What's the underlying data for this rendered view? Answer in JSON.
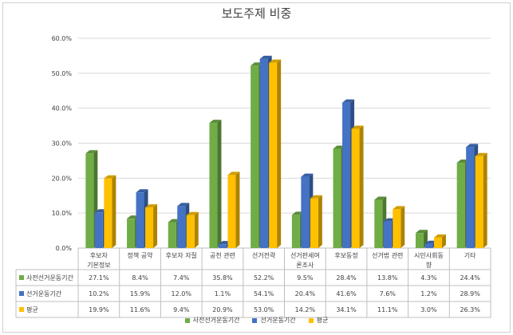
{
  "chart_data": {
    "type": "bar",
    "title": "보도주제 비중",
    "categories": [
      [
        "후보자",
        "기본정보"
      ],
      [
        "정책 공약"
      ],
      [
        "후보자 자질"
      ],
      [
        "공천 관련"
      ],
      [
        "선거전략"
      ],
      [
        "선거판세여",
        "론조사"
      ],
      [
        "후보동정"
      ],
      [
        "선거법 관련"
      ],
      [
        "시민사회동",
        "향"
      ],
      [
        "기타"
      ]
    ],
    "series": [
      {
        "name": "사전선거운동기간",
        "color": "#70ad47",
        "values": [
          27.1,
          8.4,
          7.4,
          35.8,
          52.2,
          9.5,
          28.4,
          13.8,
          4.3,
          24.4
        ],
        "labels": [
          "27.1%",
          "8.4%",
          "7.4%",
          "35.8%",
          "52.2%",
          "9.5%",
          "28.4%",
          "13.8%",
          "4.3%",
          "24.4%"
        ]
      },
      {
        "name": "선거운동기간",
        "color": "#4472c4",
        "values": [
          10.2,
          15.9,
          12.0,
          1.1,
          54.1,
          20.4,
          41.6,
          7.6,
          1.2,
          28.9
        ],
        "labels": [
          "10.2%",
          "15.9%",
          "12.0%",
          "1.1%",
          "54.1%",
          "20.4%",
          "41.6%",
          "7.6%",
          "1.2%",
          "28.9%"
        ]
      },
      {
        "name": "평균",
        "color": "#ffc000",
        "values": [
          19.9,
          11.6,
          9.4,
          20.9,
          53.0,
          14.2,
          34.1,
          11.1,
          3.0,
          26.3
        ],
        "labels": [
          "19.9%",
          "11.6%",
          "9.4%",
          "20.9%",
          "53.0%",
          "14.2%",
          "34.1%",
          "11.1%",
          "3.0%",
          "26.3%"
        ]
      }
    ],
    "ylim": [
      0,
      60
    ],
    "yticks": [
      "0.0%",
      "10.0%",
      "20.0%",
      "30.0%",
      "40.0%",
      "50.0%",
      "60.0%"
    ],
    "grid": true,
    "data_table": true,
    "legend_position": "bottom"
  }
}
